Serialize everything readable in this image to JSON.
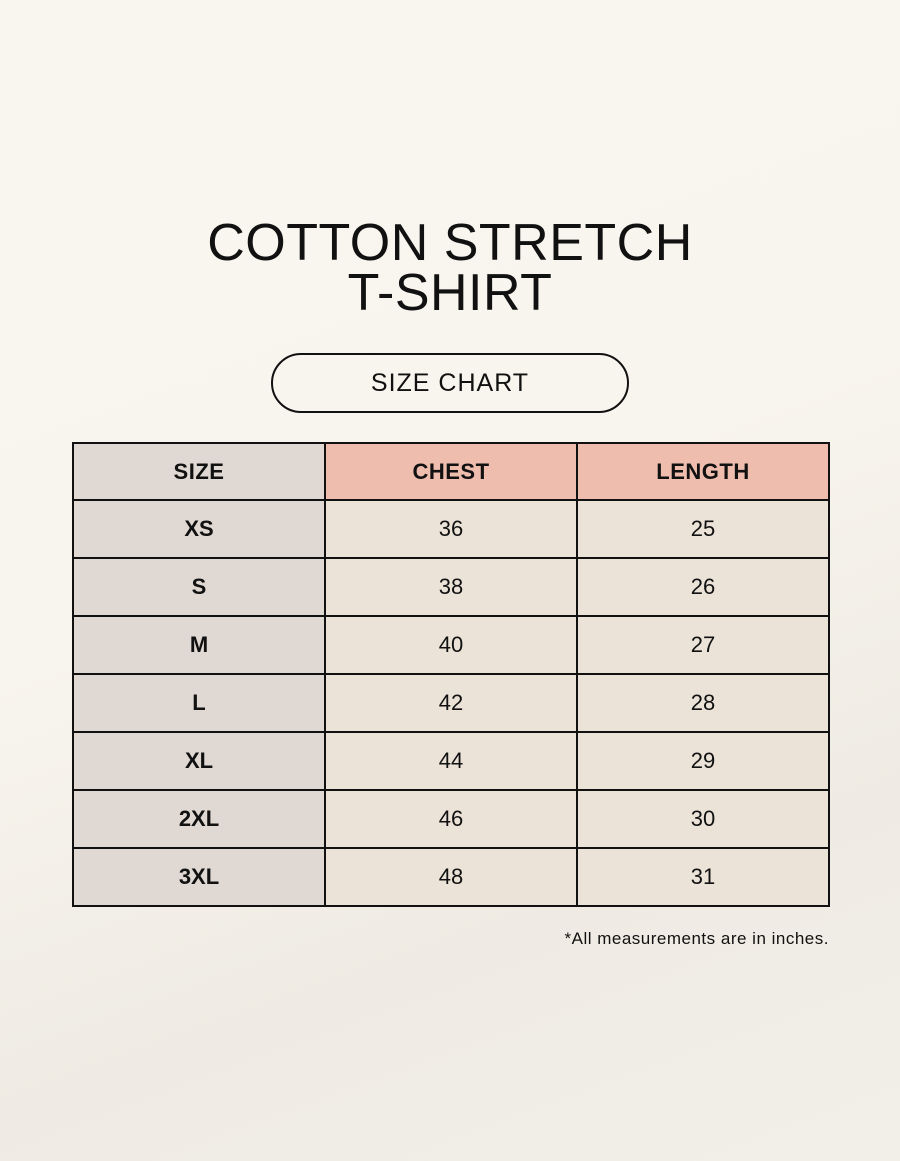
{
  "title_line1": "COTTON STRETCH",
  "title_line2": "T-SHIRT",
  "subtitle": "SIZE CHART",
  "table": {
    "headers": [
      "SIZE",
      "CHEST",
      "LENGTH"
    ],
    "rows": [
      [
        "XS",
        "36",
        "25"
      ],
      [
        "S",
        "38",
        "26"
      ],
      [
        "M",
        "40",
        "27"
      ],
      [
        "L",
        "42",
        "28"
      ],
      [
        "XL",
        "44",
        "29"
      ],
      [
        "2XL",
        "46",
        "30"
      ],
      [
        "3XL",
        "48",
        "31"
      ]
    ]
  },
  "note": "*All measurements are in inches.",
  "colors": {
    "size_col": "#e0d9d3",
    "header_accent": "#efbdae",
    "cell": "#ebe3d8"
  }
}
